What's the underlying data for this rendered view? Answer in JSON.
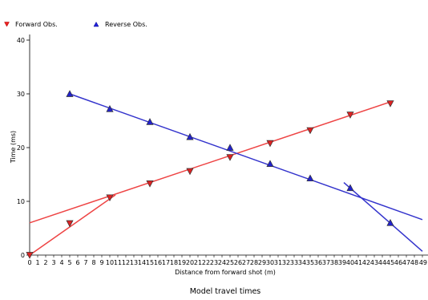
{
  "chart_data": {
    "type": "scatter",
    "caption": "Model travel times",
    "xlabel": "Distance from forward shot (m)",
    "ylabel": "Time (ms)",
    "xlim": [
      0,
      49
    ],
    "ylim": [
      0,
      40
    ],
    "x_ticks": [
      "0",
      "1",
      "2",
      "3",
      "4",
      "5",
      "6",
      "7",
      "8",
      "9",
      "10",
      "11",
      "12",
      "13",
      "14",
      "15",
      "16",
      "17",
      "18",
      "19",
      "20",
      "21",
      "22",
      "23",
      "24",
      "25",
      "26",
      "27",
      "28",
      "29",
      "30",
      "31",
      "32",
      "33",
      "34",
      "35",
      "36",
      "37",
      "38",
      "39",
      "40",
      "41",
      "42",
      "43",
      "44",
      "45",
      "46",
      "47",
      "48",
      "49"
    ],
    "y_ticks": [
      "0",
      "10",
      "20",
      "30",
      "40"
    ],
    "grid": false,
    "legend_position": "top-left",
    "series": [
      {
        "name": "Forward Obs.",
        "marker": "triangle-down",
        "color": "#dd2222",
        "x": [
          0,
          5,
          10,
          15,
          20,
          25,
          30,
          35,
          40,
          45
        ],
        "y": [
          0,
          5.9,
          10.7,
          13.3,
          15.6,
          18.2,
          20.8,
          23.2,
          26.1,
          28.2
        ]
      },
      {
        "name": "Reverse Obs.",
        "marker": "triangle-up",
        "color": "#2222cc",
        "x": [
          5,
          10,
          15,
          20,
          25,
          30,
          35,
          40,
          45
        ],
        "y": [
          30.0,
          27.2,
          24.8,
          22.0,
          20.0,
          17.0,
          14.3,
          12.5,
          6.0
        ]
      }
    ],
    "model_lines": [
      {
        "color": "#ee4444",
        "x": [
          0,
          10.7
        ],
        "y": [
          0,
          11.2
        ]
      },
      {
        "color": "#ee4444",
        "x": [
          0,
          45
        ],
        "y": [
          6.0,
          28.5
        ]
      },
      {
        "color": "#3333cc",
        "x": [
          5,
          49
        ],
        "y": [
          30.0,
          6.6
        ]
      },
      {
        "color": "#3333cc",
        "x": [
          39.2,
          49
        ],
        "y": [
          13.5,
          0.7
        ]
      }
    ]
  }
}
